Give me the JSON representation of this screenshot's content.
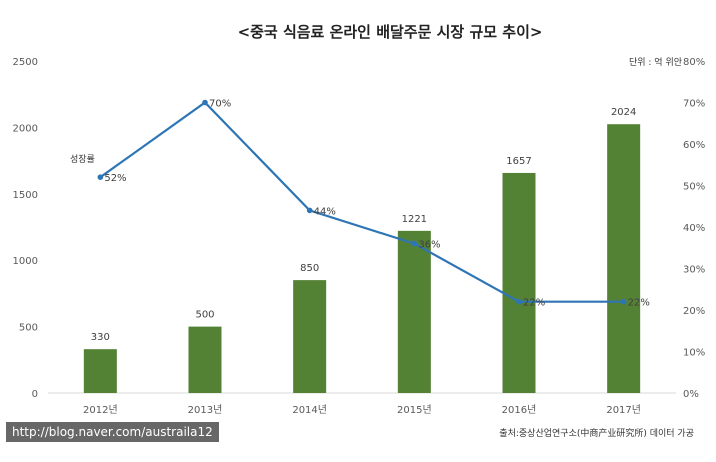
{
  "chart_data": {
    "type": "bar",
    "title": "<중국 식음료 온라인 배달주문 시장 규모 추이>",
    "unit_label": "단위 : 억 위안",
    "categories": [
      "2012년",
      "2013년",
      "2014년",
      "2015년",
      "2016년",
      "2017년"
    ],
    "series": [
      {
        "name": "시장 규모",
        "type": "bar",
        "axis": "left",
        "color": "#548235",
        "values": [
          330,
          500,
          850,
          1221,
          1657,
          2024
        ],
        "labels": [
          "330",
          "500",
          "850",
          "1221",
          "1657",
          "2024"
        ]
      },
      {
        "name": "성장률",
        "type": "line",
        "axis": "right",
        "color": "#2e75b6",
        "values": [
          52,
          70,
          44,
          36,
          22,
          22
        ],
        "labels": [
          "52%",
          "70%",
          "44%",
          "36%",
          "22%",
          "22%"
        ]
      }
    ],
    "left_axis": {
      "ylim": [
        0,
        2500
      ],
      "ticks": [
        "0",
        "500",
        "1000",
        "1500",
        "2000",
        "2500"
      ]
    },
    "right_axis": {
      "ylim": [
        0,
        80
      ],
      "ticks": [
        "0%",
        "10%",
        "20%",
        "30%",
        "40%",
        "50%",
        "60%",
        "70%",
        "80%"
      ]
    },
    "source": "출처:중상산업연구소(中商产业研究所) 데이터 가공"
  },
  "watermark": "http://blog.naver.com/austraila12"
}
